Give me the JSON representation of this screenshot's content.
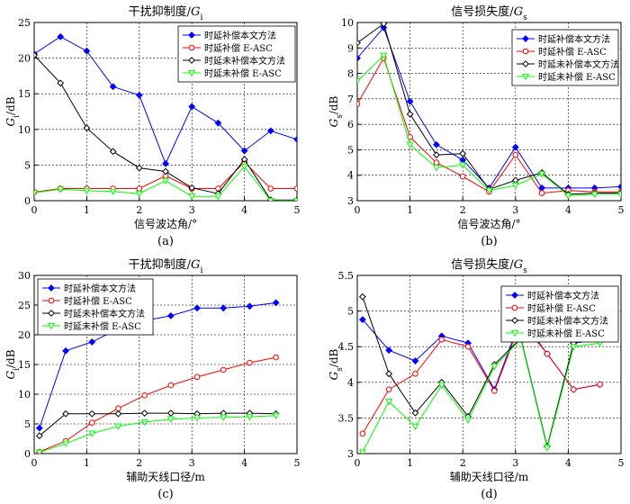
{
  "chart_data": [
    {
      "type": "line",
      "title": "干扰抑制度/G",
      "title_sub": "i",
      "xlabel": "信号波达角/°",
      "ylabel": "G",
      "ylabel_sub": "i",
      "ylabel_unit": "/dB",
      "panel_label": "(a)",
      "xlim": [
        0,
        5
      ],
      "ylim": [
        0,
        25
      ],
      "xticks": [
        0,
        1,
        2,
        3,
        4,
        5
      ],
      "yticks": [
        0,
        5,
        10,
        15,
        20,
        25
      ],
      "grid": true,
      "legend": "top-right",
      "series": [
        {
          "name": "时延补偿本文方法",
          "color": "#0000ff",
          "marker": "diamond-fill",
          "x": [
            0,
            0.5,
            1,
            1.5,
            2,
            2.5,
            3,
            3.5,
            4,
            4.5,
            5
          ],
          "y": [
            20.6,
            23,
            21,
            16,
            14.8,
            5.2,
            13.2,
            10.9,
            7,
            9.8,
            8.6
          ]
        },
        {
          "name": "时延补偿 E-ASC",
          "color": "#ff0000",
          "marker": "circle",
          "x": [
            0,
            0.5,
            1,
            1.5,
            2,
            2.5,
            3,
            3.5,
            4,
            4.5,
            5
          ],
          "y": [
            1.2,
            1.7,
            1.7,
            1.7,
            1.7,
            3.5,
            1.7,
            1.7,
            5.4,
            1.7,
            1.7
          ]
        },
        {
          "name": "时延未补偿本文方法",
          "color": "#000000",
          "marker": "diamond",
          "x": [
            0,
            0.5,
            1,
            1.5,
            2,
            2.5,
            3,
            3.5,
            4,
            4.5,
            5
          ],
          "y": [
            20.4,
            16.5,
            10.2,
            6.9,
            4.6,
            4.1,
            1.8,
            1,
            5.8,
            0.1,
            0.1
          ]
        },
        {
          "name": "时延未补偿 E-ASC",
          "color": "#00ff00",
          "marker": "triangle-down",
          "x": [
            0,
            0.5,
            1,
            1.5,
            2,
            2.5,
            3,
            3.5,
            4,
            4.5,
            5
          ],
          "y": [
            1.1,
            1.6,
            1.4,
            1.3,
            1,
            2.8,
            0.6,
            0.6,
            4.8,
            0,
            0
          ]
        }
      ]
    },
    {
      "type": "line",
      "title": "信号损失度/G",
      "title_sub": "s",
      "xlabel": "信号波达角/°",
      "ylabel": "G",
      "ylabel_sub": "s",
      "ylabel_unit": "/dB",
      "panel_label": "(b)",
      "xlim": [
        0,
        5
      ],
      "ylim": [
        3,
        10
      ],
      "xticks": [
        0,
        1,
        2,
        3,
        4,
        5
      ],
      "yticks": [
        3,
        4,
        5,
        6,
        7,
        8,
        9,
        10
      ],
      "grid": true,
      "legend": "top-right",
      "series": [
        {
          "name": "时延补偿本文方法",
          "color": "#0000ff",
          "marker": "diamond-fill",
          "x": [
            0,
            0.5,
            1,
            1.5,
            2,
            2.5,
            3,
            3.5,
            4,
            4.5,
            5
          ],
          "y": [
            8.6,
            9.8,
            6.9,
            5.2,
            4.6,
            3.5,
            5.1,
            3.5,
            3.5,
            3.5,
            3.55
          ]
        },
        {
          "name": "时延补偿 E-ASC",
          "color": "#ff0000",
          "marker": "circle",
          "x": [
            0,
            0.5,
            1,
            1.5,
            2,
            2.5,
            3,
            3.5,
            4,
            4.5,
            5
          ],
          "y": [
            6.8,
            8.6,
            5.5,
            4.5,
            3.95,
            3.35,
            4.8,
            3.3,
            3.4,
            3.35,
            3.35
          ]
        },
        {
          "name": "时延未补偿本文方法",
          "color": "#000000",
          "marker": "diamond",
          "x": [
            0,
            0.5,
            1,
            1.5,
            2,
            2.5,
            3,
            3.5,
            4,
            4.5,
            5
          ],
          "y": [
            9.2,
            9.95,
            6.4,
            4.8,
            4.85,
            3.45,
            3.8,
            4.1,
            3.25,
            3.3,
            3.3
          ]
        },
        {
          "name": "时延未补偿 E-ASC",
          "color": "#00ff00",
          "marker": "triangle-down",
          "x": [
            0,
            0.5,
            1,
            1.5,
            2,
            2.5,
            3,
            3.5,
            4,
            4.5,
            5
          ],
          "y": [
            7.7,
            8.7,
            5.2,
            4.3,
            4.4,
            3.4,
            3.6,
            4.05,
            3.2,
            3.25,
            3.25
          ]
        }
      ]
    },
    {
      "type": "line",
      "title": "干扰抑制度/G",
      "title_sub": "i",
      "xlabel": "辅助天线口径/m",
      "ylabel": "G",
      "ylabel_sub": "i",
      "ylabel_unit": "/dB",
      "panel_label": "(c)",
      "xlim": [
        0,
        5
      ],
      "ylim": [
        0,
        30
      ],
      "xticks": [
        0,
        1,
        2,
        3,
        4,
        5
      ],
      "yticks": [
        0,
        5,
        10,
        15,
        20,
        25,
        30
      ],
      "grid": true,
      "legend": "top-left",
      "series": [
        {
          "name": "时延补偿本文方法",
          "color": "#0000ff",
          "marker": "diamond-fill",
          "x": [
            0.1,
            0.6,
            1.1,
            1.6,
            2.1,
            2.6,
            3.1,
            3.6,
            4.1,
            4.6
          ],
          "y": [
            4.3,
            17.3,
            18.8,
            21,
            22.4,
            23.2,
            24.5,
            24.5,
            24.8,
            25.4
          ]
        },
        {
          "name": "时延补偿 E-ASC",
          "color": "#ff0000",
          "marker": "circle",
          "x": [
            0.1,
            0.6,
            1.1,
            1.6,
            2.1,
            2.6,
            3.1,
            3.6,
            4.1,
            4.6
          ],
          "y": [
            0.3,
            2.1,
            5.2,
            7.6,
            9.8,
            11.5,
            12.9,
            14.1,
            15.3,
            16.2
          ]
        },
        {
          "name": "时延未补偿本文方法",
          "color": "#000000",
          "marker": "diamond",
          "x": [
            0.1,
            0.6,
            1.1,
            1.6,
            2.1,
            2.6,
            3.1,
            3.6,
            4.1,
            4.6
          ],
          "y": [
            3,
            6.7,
            6.7,
            6.7,
            6.8,
            6.8,
            6.7,
            6.8,
            6.8,
            6.7
          ]
        },
        {
          "name": "时延未补偿 E-ASC",
          "color": "#00ff00",
          "marker": "triangle-down",
          "x": [
            0.1,
            0.6,
            1.1,
            1.6,
            2.1,
            2.6,
            3.1,
            3.6,
            4.1,
            4.6
          ],
          "y": [
            0.2,
            1.7,
            3.4,
            4.6,
            5.3,
            5.8,
            6,
            6.1,
            6.2,
            6.4
          ]
        }
      ]
    },
    {
      "type": "line",
      "title": "信号损失度/G",
      "title_sub": "s",
      "xlabel": "辅助天线口径/m",
      "ylabel": "G",
      "ylabel_sub": "s",
      "ylabel_unit": "/dB",
      "panel_label": "(d)",
      "xlim": [
        0,
        5
      ],
      "ylim": [
        3,
        5.5
      ],
      "xticks": [
        0,
        1,
        2,
        3,
        4,
        5
      ],
      "yticks": [
        3,
        3.5,
        4,
        4.5,
        5,
        5.5
      ],
      "grid": true,
      "legend": "top-right",
      "series": [
        {
          "name": "时延补偿本文方法",
          "color": "#0000ff",
          "marker": "diamond-fill",
          "x": [
            0.1,
            0.6,
            1.1,
            1.6,
            2.1,
            2.6,
            3.1,
            3.6,
            4.1,
            4.6
          ],
          "y": [
            4.88,
            4.45,
            4.3,
            4.65,
            4.55,
            3.9,
            4.9,
            4.4,
            3.9,
            3.97
          ]
        },
        {
          "name": "时延补偿 E-ASC",
          "color": "#ff0000",
          "marker": "circle",
          "x": [
            0.1,
            0.6,
            1.1,
            1.6,
            2.1,
            2.6,
            3.1,
            3.6,
            4.1,
            4.6
          ],
          "y": [
            3.28,
            3.9,
            4.12,
            4.6,
            4.5,
            3.88,
            4.85,
            4.4,
            3.9,
            3.97
          ]
        },
        {
          "name": "时延未补偿本文方法",
          "color": "#000000",
          "marker": "diamond",
          "x": [
            0.1,
            0.6,
            1.1,
            1.6,
            2.1,
            2.6,
            3.1,
            3.6,
            4.1,
            4.6
          ],
          "y": [
            5.2,
            4.12,
            3.57,
            4.0,
            3.52,
            4.25,
            4.62,
            3.1,
            4.55,
            4.6
          ]
        },
        {
          "name": "时延未补偿 E-ASC",
          "color": "#00ff00",
          "marker": "triangle-down",
          "x": [
            0.1,
            0.6,
            1.1,
            1.6,
            2.1,
            2.6,
            3.1,
            3.6,
            4.1,
            4.6
          ],
          "y": [
            3.02,
            3.73,
            3.38,
            3.96,
            3.47,
            4.22,
            4.6,
            3.08,
            4.5,
            4.55
          ]
        }
      ]
    }
  ]
}
